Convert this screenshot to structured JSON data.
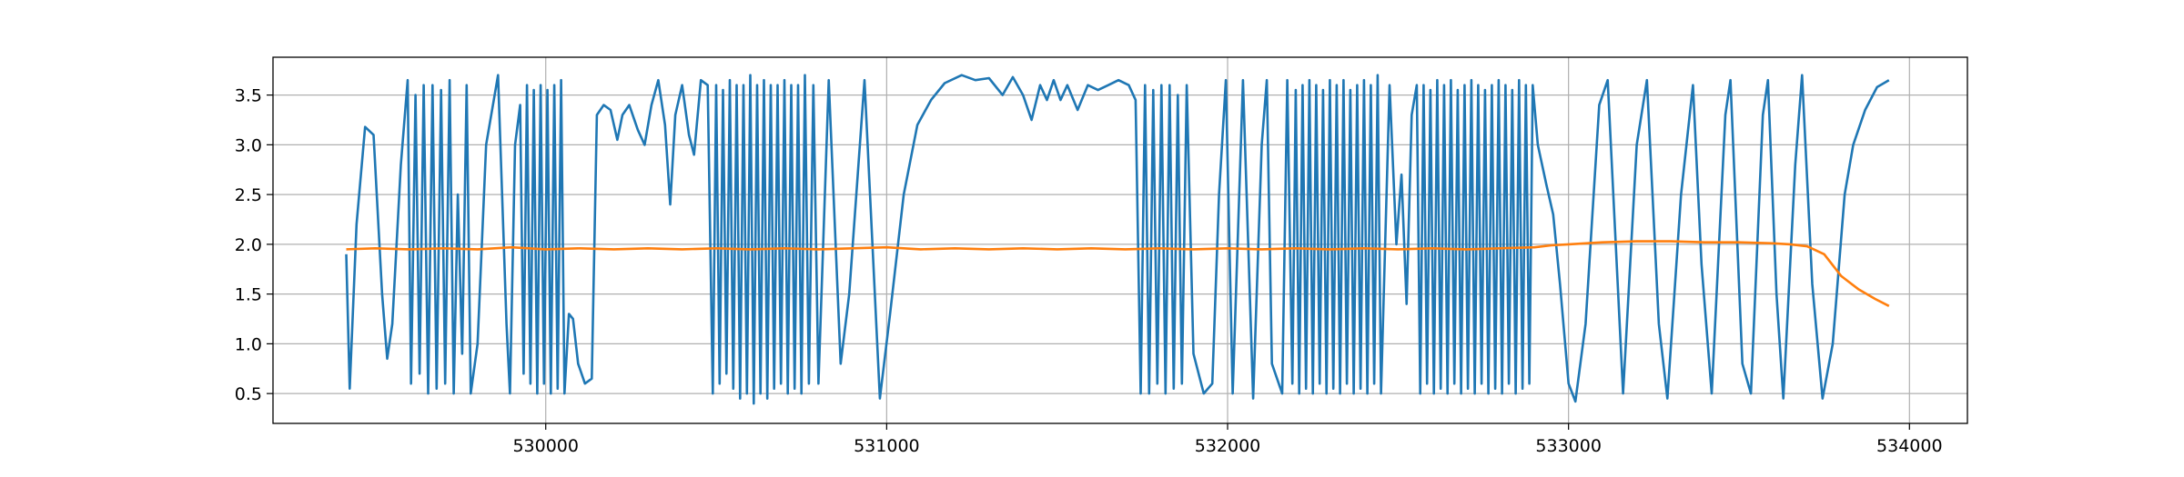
{
  "chart_data": {
    "type": "line",
    "title": "",
    "xlabel": "",
    "ylabel": "",
    "xlim": [
      529200,
      534170
    ],
    "ylim": [
      0.2,
      3.88
    ],
    "grid": true,
    "x_ticks": [
      530000,
      531000,
      532000,
      533000,
      534000
    ],
    "x_tick_labels": [
      "530000",
      "531000",
      "532000",
      "533000",
      "534000"
    ],
    "y_ticks": [
      0.5,
      1.0,
      1.5,
      2.0,
      2.5,
      3.0,
      3.5
    ],
    "y_tick_labels": [
      "0.5",
      "1.0",
      "1.5",
      "2.0",
      "2.5",
      "3.0",
      "3.5"
    ],
    "series": [
      {
        "color": "#1f77b4",
        "points": [
          [
            529415,
            1.9
          ],
          [
            529425,
            0.55
          ],
          [
            529445,
            2.2
          ],
          [
            529470,
            3.18
          ],
          [
            529495,
            3.1
          ],
          [
            529520,
            1.5
          ],
          [
            529535,
            0.85
          ],
          [
            529550,
            1.2
          ],
          [
            529575,
            2.8
          ],
          [
            529595,
            3.65
          ],
          [
            529605,
            0.6
          ],
          [
            529618,
            3.5
          ],
          [
            529630,
            0.7
          ],
          [
            529642,
            3.6
          ],
          [
            529655,
            0.5
          ],
          [
            529668,
            3.6
          ],
          [
            529680,
            0.55
          ],
          [
            529693,
            3.55
          ],
          [
            529705,
            0.6
          ],
          [
            529718,
            3.65
          ],
          [
            529730,
            0.5
          ],
          [
            529742,
            2.5
          ],
          [
            529755,
            0.9
          ],
          [
            529768,
            3.6
          ],
          [
            529780,
            0.5
          ],
          [
            529800,
            1.0
          ],
          [
            529825,
            3.0
          ],
          [
            529860,
            3.7
          ],
          [
            529885,
            1.2
          ],
          [
            529895,
            0.5
          ],
          [
            529910,
            3.0
          ],
          [
            529925,
            3.4
          ],
          [
            529935,
            0.7
          ],
          [
            529945,
            3.6
          ],
          [
            529955,
            0.6
          ],
          [
            529965,
            3.55
          ],
          [
            529975,
            0.5
          ],
          [
            529985,
            3.6
          ],
          [
            529995,
            0.6
          ],
          [
            530005,
            3.55
          ],
          [
            530015,
            0.5
          ],
          [
            530025,
            3.6
          ],
          [
            530035,
            0.55
          ],
          [
            530045,
            3.65
          ],
          [
            530055,
            0.5
          ],
          [
            530068,
            1.3
          ],
          [
            530080,
            1.25
          ],
          [
            530095,
            0.8
          ],
          [
            530115,
            0.6
          ],
          [
            530135,
            0.65
          ],
          [
            530150,
            3.3
          ],
          [
            530170,
            3.4
          ],
          [
            530190,
            3.35
          ],
          [
            530210,
            3.05
          ],
          [
            530225,
            3.3
          ],
          [
            530245,
            3.4
          ],
          [
            530270,
            3.15
          ],
          [
            530290,
            3.0
          ],
          [
            530310,
            3.4
          ],
          [
            530330,
            3.65
          ],
          [
            530350,
            3.2
          ],
          [
            530365,
            2.4
          ],
          [
            530380,
            3.3
          ],
          [
            530400,
            3.6
          ],
          [
            530420,
            3.1
          ],
          [
            530435,
            2.9
          ],
          [
            530455,
            3.65
          ],
          [
            530475,
            3.6
          ],
          [
            530490,
            0.5
          ],
          [
            530500,
            3.6
          ],
          [
            530510,
            0.6
          ],
          [
            530520,
            3.55
          ],
          [
            530530,
            0.7
          ],
          [
            530540,
            3.65
          ],
          [
            530550,
            0.55
          ],
          [
            530560,
            3.6
          ],
          [
            530570,
            0.45
          ],
          [
            530580,
            3.6
          ],
          [
            530590,
            0.5
          ],
          [
            530600,
            3.7
          ],
          [
            530610,
            0.4
          ],
          [
            530620,
            3.6
          ],
          [
            530630,
            0.5
          ],
          [
            530640,
            3.65
          ],
          [
            530650,
            0.45
          ],
          [
            530660,
            3.6
          ],
          [
            530670,
            0.55
          ],
          [
            530680,
            3.6
          ],
          [
            530690,
            0.6
          ],
          [
            530700,
            3.65
          ],
          [
            530710,
            0.5
          ],
          [
            530720,
            3.6
          ],
          [
            530730,
            0.55
          ],
          [
            530740,
            3.6
          ],
          [
            530750,
            0.5
          ],
          [
            530760,
            3.7
          ],
          [
            530772,
            0.6
          ],
          [
            530785,
            3.6
          ],
          [
            530800,
            0.6
          ],
          [
            530830,
            3.65
          ],
          [
            530865,
            0.8
          ],
          [
            530890,
            1.5
          ],
          [
            530935,
            3.65
          ],
          [
            530980,
            0.45
          ],
          [
            531010,
            1.3
          ],
          [
            531050,
            2.5
          ],
          [
            531090,
            3.2
          ],
          [
            531130,
            3.45
          ],
          [
            531170,
            3.62
          ],
          [
            531220,
            3.7
          ],
          [
            531260,
            3.65
          ],
          [
            531300,
            3.67
          ],
          [
            531340,
            3.5
          ],
          [
            531370,
            3.68
          ],
          [
            531400,
            3.5
          ],
          [
            531425,
            3.25
          ],
          [
            531450,
            3.6
          ],
          [
            531470,
            3.45
          ],
          [
            531490,
            3.65
          ],
          [
            531510,
            3.45
          ],
          [
            531530,
            3.6
          ],
          [
            531560,
            3.35
          ],
          [
            531590,
            3.6
          ],
          [
            531620,
            3.55
          ],
          [
            531650,
            3.6
          ],
          [
            531680,
            3.65
          ],
          [
            531710,
            3.6
          ],
          [
            531730,
            3.45
          ],
          [
            531745,
            0.5
          ],
          [
            531758,
            3.6
          ],
          [
            531770,
            0.5
          ],
          [
            531782,
            3.55
          ],
          [
            531794,
            0.6
          ],
          [
            531806,
            3.6
          ],
          [
            531818,
            0.5
          ],
          [
            531830,
            3.6
          ],
          [
            531842,
            0.55
          ],
          [
            531854,
            3.5
          ],
          [
            531866,
            0.6
          ],
          [
            531880,
            3.6
          ],
          [
            531900,
            0.9
          ],
          [
            531930,
            0.5
          ],
          [
            531955,
            0.6
          ],
          [
            531975,
            2.5
          ],
          [
            531995,
            3.65
          ],
          [
            532015,
            0.5
          ],
          [
            532045,
            3.65
          ],
          [
            532075,
            0.45
          ],
          [
            532100,
            3.0
          ],
          [
            532115,
            3.65
          ],
          [
            532130,
            0.8
          ],
          [
            532160,
            0.5
          ],
          [
            532175,
            3.65
          ],
          [
            532190,
            0.6
          ],
          [
            532200,
            3.55
          ],
          [
            532210,
            0.5
          ],
          [
            532220,
            3.6
          ],
          [
            532230,
            0.55
          ],
          [
            532240,
            3.65
          ],
          [
            532250,
            0.5
          ],
          [
            532260,
            3.6
          ],
          [
            532270,
            0.6
          ],
          [
            532280,
            3.55
          ],
          [
            532290,
            0.5
          ],
          [
            532300,
            3.65
          ],
          [
            532310,
            0.55
          ],
          [
            532320,
            3.6
          ],
          [
            532330,
            0.5
          ],
          [
            532340,
            3.65
          ],
          [
            532350,
            0.6
          ],
          [
            532360,
            3.55
          ],
          [
            532370,
            0.5
          ],
          [
            532380,
            3.6
          ],
          [
            532390,
            0.55
          ],
          [
            532400,
            3.65
          ],
          [
            532410,
            0.5
          ],
          [
            532420,
            3.6
          ],
          [
            532430,
            0.6
          ],
          [
            532440,
            3.7
          ],
          [
            532450,
            0.5
          ],
          [
            532475,
            3.6
          ],
          [
            532495,
            2.0
          ],
          [
            532510,
            2.7
          ],
          [
            532525,
            1.4
          ],
          [
            532540,
            3.3
          ],
          [
            532555,
            3.6
          ],
          [
            532565,
            0.5
          ],
          [
            532575,
            3.6
          ],
          [
            532585,
            0.6
          ],
          [
            532595,
            3.55
          ],
          [
            532605,
            0.5
          ],
          [
            532615,
            3.65
          ],
          [
            532625,
            0.55
          ],
          [
            532635,
            3.6
          ],
          [
            532645,
            0.5
          ],
          [
            532655,
            3.65
          ],
          [
            532665,
            0.6
          ],
          [
            532675,
            3.55
          ],
          [
            532685,
            0.5
          ],
          [
            532695,
            3.6
          ],
          [
            532705,
            0.55
          ],
          [
            532715,
            3.65
          ],
          [
            532725,
            0.5
          ],
          [
            532735,
            3.6
          ],
          [
            532745,
            0.6
          ],
          [
            532755,
            3.55
          ],
          [
            532765,
            0.5
          ],
          [
            532775,
            3.6
          ],
          [
            532785,
            0.55
          ],
          [
            532795,
            3.65
          ],
          [
            532805,
            0.5
          ],
          [
            532815,
            3.6
          ],
          [
            532825,
            0.6
          ],
          [
            532835,
            3.55
          ],
          [
            532845,
            0.5
          ],
          [
            532855,
            3.65
          ],
          [
            532865,
            0.55
          ],
          [
            532875,
            3.6
          ],
          [
            532885,
            0.6
          ],
          [
            532895,
            3.6
          ],
          [
            532910,
            3.0
          ],
          [
            532935,
            2.6
          ],
          [
            532955,
            2.3
          ],
          [
            532975,
            1.6
          ],
          [
            533000,
            0.6
          ],
          [
            533020,
            0.42
          ],
          [
            533050,
            1.2
          ],
          [
            533090,
            3.4
          ],
          [
            533115,
            3.65
          ],
          [
            533160,
            0.5
          ],
          [
            533200,
            3.0
          ],
          [
            533230,
            3.65
          ],
          [
            533265,
            1.2
          ],
          [
            533290,
            0.45
          ],
          [
            533330,
            2.5
          ],
          [
            533365,
            3.6
          ],
          [
            533390,
            1.8
          ],
          [
            533420,
            0.5
          ],
          [
            533460,
            3.3
          ],
          [
            533475,
            3.65
          ],
          [
            533510,
            0.8
          ],
          [
            533535,
            0.5
          ],
          [
            533570,
            3.3
          ],
          [
            533585,
            3.65
          ],
          [
            533610,
            1.5
          ],
          [
            533630,
            0.45
          ],
          [
            533665,
            2.8
          ],
          [
            533685,
            3.7
          ],
          [
            533715,
            1.6
          ],
          [
            533745,
            0.45
          ],
          [
            533775,
            1.0
          ],
          [
            533810,
            2.5
          ],
          [
            533835,
            3.0
          ],
          [
            533870,
            3.35
          ],
          [
            533905,
            3.58
          ],
          [
            533940,
            3.65
          ]
        ]
      },
      {
        "color": "#ff7f0e",
        "points": [
          [
            529415,
            1.95
          ],
          [
            529500,
            1.96
          ],
          [
            529600,
            1.95
          ],
          [
            529700,
            1.96
          ],
          [
            529800,
            1.95
          ],
          [
            529900,
            1.97
          ],
          [
            530000,
            1.95
          ],
          [
            530100,
            1.96
          ],
          [
            530200,
            1.95
          ],
          [
            530300,
            1.96
          ],
          [
            530400,
            1.95
          ],
          [
            530500,
            1.96
          ],
          [
            530600,
            1.95
          ],
          [
            530700,
            1.96
          ],
          [
            530800,
            1.95
          ],
          [
            530900,
            1.96
          ],
          [
            531000,
            1.97
          ],
          [
            531100,
            1.95
          ],
          [
            531200,
            1.96
          ],
          [
            531300,
            1.95
          ],
          [
            531400,
            1.96
          ],
          [
            531500,
            1.95
          ],
          [
            531600,
            1.96
          ],
          [
            531700,
            1.95
          ],
          [
            531800,
            1.96
          ],
          [
            531900,
            1.95
          ],
          [
            532000,
            1.96
          ],
          [
            532100,
            1.95
          ],
          [
            532200,
            1.96
          ],
          [
            532300,
            1.95
          ],
          [
            532400,
            1.96
          ],
          [
            532500,
            1.95
          ],
          [
            532600,
            1.96
          ],
          [
            532700,
            1.95
          ],
          [
            532800,
            1.96
          ],
          [
            532900,
            1.97
          ],
          [
            532950,
            1.99
          ],
          [
            533000,
            2.0
          ],
          [
            533100,
            2.02
          ],
          [
            533200,
            2.03
          ],
          [
            533300,
            2.03
          ],
          [
            533400,
            2.02
          ],
          [
            533500,
            2.02
          ],
          [
            533600,
            2.01
          ],
          [
            533650,
            2.0
          ],
          [
            533700,
            1.98
          ],
          [
            533750,
            1.9
          ],
          [
            533800,
            1.68
          ],
          [
            533850,
            1.55
          ],
          [
            533900,
            1.45
          ],
          [
            533940,
            1.38
          ]
        ]
      }
    ]
  }
}
